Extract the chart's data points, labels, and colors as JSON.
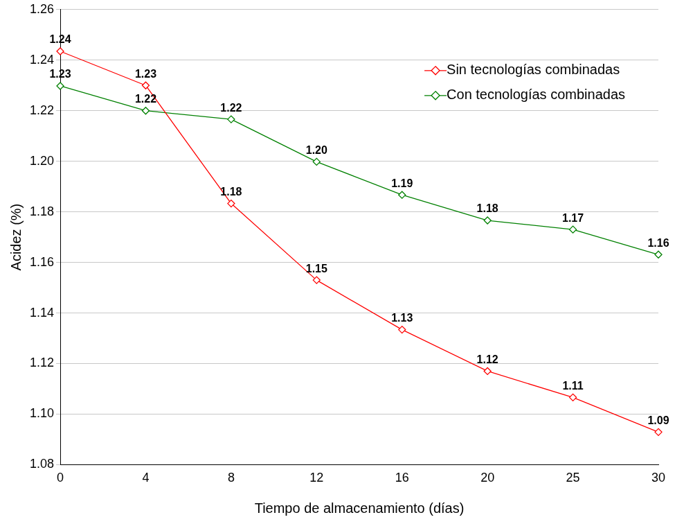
{
  "chart_data": {
    "type": "line",
    "xlabel": "Tiempo de almacenamiento (días)",
    "ylabel": "Acidez (%)",
    "categories": [
      "0",
      "4",
      "8",
      "12",
      "16",
      "20",
      "25",
      "30"
    ],
    "series": [
      {
        "name": "Sin tecnologías combinadas",
        "color": "#ff0000",
        "values": [
          1.2435,
          1.23,
          1.1833,
          1.153,
          1.1334,
          1.117,
          1.1066,
          1.0929
        ],
        "value_labels": [
          "1.24",
          "1.23",
          "1.18",
          "1.15",
          "1.13",
          "1.12",
          "1.11",
          "1.09"
        ]
      },
      {
        "name": "Con tecnologías combinadas",
        "color": "#008000",
        "values": [
          1.2298,
          1.22,
          1.2166,
          1.1998,
          1.1867,
          1.1766,
          1.173,
          1.1631
        ],
        "value_labels": [
          "1.23",
          "1.22",
          "1.22",
          "1.20",
          "1.19",
          "1.18",
          "1.17",
          "1.16"
        ]
      }
    ],
    "ylim": [
      1.08,
      1.26
    ],
    "yticks": [
      {
        "value": 1.08,
        "label": "1.08"
      },
      {
        "value": 1.1,
        "label": "1.10"
      },
      {
        "value": 1.12,
        "label": "1.12"
      },
      {
        "value": 1.14,
        "label": "1.14"
      },
      {
        "value": 1.16,
        "label": "1.16"
      },
      {
        "value": 1.18,
        "label": "1.18"
      },
      {
        "value": 1.2,
        "label": "1.20"
      },
      {
        "value": 1.22,
        "label": "1.22"
      },
      {
        "value": 1.24,
        "label": "1.24"
      },
      {
        "value": 1.26,
        "label": "1.26"
      }
    ],
    "grid": "y",
    "legend": "top right",
    "marker": "diamond",
    "line_style": "solid"
  }
}
